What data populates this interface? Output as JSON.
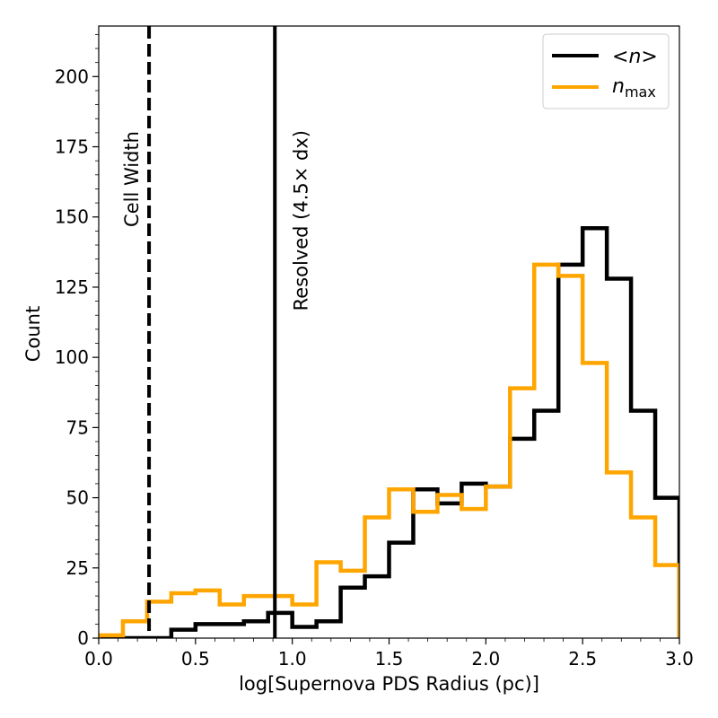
{
  "chart_data": {
    "type": "histogram",
    "xlabel": "log[Supernova PDS Radius (pc)]",
    "ylabel": "Count",
    "xlim": [
      0.0,
      3.0
    ],
    "ylim": [
      0,
      218
    ],
    "xticks": [
      "0.0",
      "0.5",
      "1.0",
      "1.5",
      "2.0",
      "2.5",
      "3.0"
    ],
    "yticks": [
      "0",
      "25",
      "50",
      "75",
      "100",
      "125",
      "150",
      "175",
      "200"
    ],
    "bin_edges": [
      0.0,
      0.125,
      0.25,
      0.375,
      0.5,
      0.625,
      0.75,
      0.875,
      1.0,
      1.125,
      1.25,
      1.375,
      1.5,
      1.625,
      1.75,
      1.875,
      2.0,
      2.125,
      2.25,
      2.375,
      2.5,
      2.625,
      2.75,
      2.875,
      3.0
    ],
    "series": [
      {
        "name": "<n>",
        "color": "#000000",
        "values": [
          0,
          0,
          0,
          3,
          5,
          5,
          6,
          9,
          4,
          6,
          18,
          22,
          34,
          53,
          48,
          55,
          54,
          71,
          81,
          133,
          146,
          128,
          81,
          50
        ]
      },
      {
        "name": "n_max",
        "color": "#ffa500",
        "values": [
          1,
          6,
          13,
          16,
          17,
          12,
          15,
          15,
          12,
          27,
          24,
          43,
          53,
          45,
          51,
          46,
          54,
          89,
          133,
          129,
          98,
          59,
          43,
          26
        ]
      }
    ],
    "vertical_lines": [
      {
        "x": 0.26,
        "label": "Cell Width",
        "style": "dashed",
        "color": "#000000"
      },
      {
        "x": 0.91,
        "label": "Resolved (4.5× dx)",
        "style": "solid",
        "color": "#000000"
      }
    ],
    "legend": {
      "placement": "top-right",
      "entries": [
        {
          "main": "<",
          "italic": "n",
          "tail": ">",
          "sub": ""
        },
        {
          "main": "",
          "italic": "n",
          "tail": "",
          "sub": "max"
        }
      ]
    }
  }
}
